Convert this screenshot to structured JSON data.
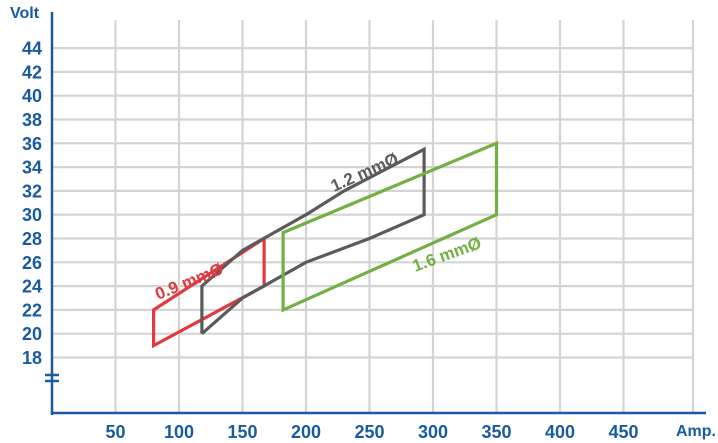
{
  "chart_data": {
    "type": "line",
    "title": "",
    "xlabel": "Amp.",
    "ylabel": "Volt",
    "xlim": [
      0,
      475
    ],
    "ylim": [
      14.5,
      45.5
    ],
    "x_ticks": [
      50,
      100,
      150,
      200,
      250,
      300,
      350,
      400,
      450
    ],
    "y_ticks": [
      18,
      20,
      22,
      24,
      26,
      28,
      30,
      32,
      34,
      36,
      38,
      40,
      42,
      44
    ],
    "grid": true,
    "axis_break": "y",
    "series": [
      {
        "name": "0.9 mmØ",
        "color": "#e03a3e",
        "closed": true,
        "points": [
          [
            80,
            19
          ],
          [
            80,
            22
          ],
          [
            167,
            28
          ],
          [
            167,
            24
          ]
        ]
      },
      {
        "name": "1.2 mmØ",
        "color": "#5b5b5b",
        "closed": false,
        "points": [
          [
            118,
            20
          ],
          [
            118,
            24
          ],
          [
            150,
            27
          ],
          [
            200,
            30
          ],
          [
            230,
            32
          ],
          [
            293,
            35.5
          ],
          [
            293,
            30
          ],
          [
            250,
            28
          ],
          [
            200,
            26
          ],
          [
            150,
            23
          ],
          [
            118,
            20
          ]
        ]
      },
      {
        "name": "1.6 mmØ",
        "color": "#72b043",
        "closed": true,
        "points": [
          [
            182,
            22
          ],
          [
            182,
            28.5
          ],
          [
            350,
            36
          ],
          [
            350,
            30
          ]
        ]
      }
    ]
  },
  "colors": {
    "axis": "#1a5ba0",
    "tick_text": "#1a5ba0",
    "grid": "#d4d4d4"
  }
}
